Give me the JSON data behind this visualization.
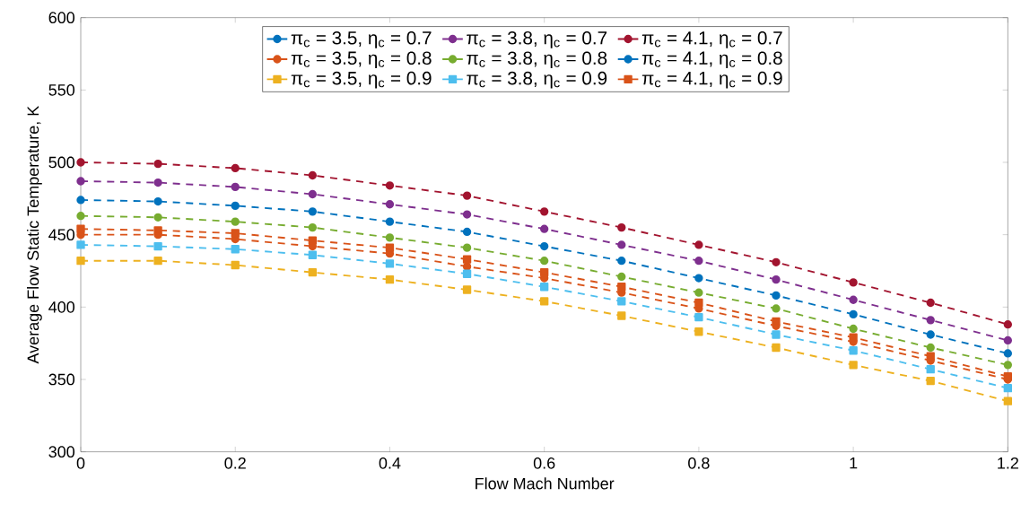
{
  "chart_data": {
    "type": "line",
    "xlabel": "Flow Mach Number",
    "ylabel": "Average Flow Static Temperature, K",
    "x": [
      0,
      0.1,
      0.2,
      0.3,
      0.4,
      0.5,
      0.6,
      0.7,
      0.8,
      0.9,
      1.0,
      1.1,
      1.2
    ],
    "xlim": [
      0,
      1.2
    ],
    "xticks": [
      0,
      0.2,
      0.4,
      0.6,
      0.8,
      1,
      1.2
    ],
    "ylim": [
      300,
      600
    ],
    "yticks": [
      300,
      350,
      400,
      450,
      500,
      550,
      600
    ],
    "grid": false,
    "legend": "top",
    "line_style": "dashed",
    "series": [
      {
        "name": "π$_{c}$ = 3.5, η$_{c}$ = 0.7",
        "color": "#0072bd",
        "marker": "circle",
        "values": [
          null,
          null,
          null,
          null,
          null,
          null,
          null,
          null,
          null,
          null,
          null,
          null,
          null
        ]
      },
      {
        "name": "π$_{c}$ = 3.8, η$_{c}$ = 0.7",
        "color": "#7e2f8e",
        "marker": "circle",
        "values": [
          487,
          486,
          483,
          478,
          471,
          464,
          454,
          443,
          432,
          419,
          405,
          391,
          377
        ]
      },
      {
        "name": "π$_{c}$ = 4.1, η$_{c}$ = 0.7",
        "color": "#a2142f",
        "marker": "circle",
        "values": [
          500,
          499,
          496,
          491,
          484,
          477,
          466,
          455,
          443,
          431,
          417,
          403,
          388
        ]
      },
      {
        "name": "π$_{c}$ = 3.5, η$_{c}$ = 0.8",
        "color": "#d95319",
        "marker": "circle",
        "values": [
          450,
          450,
          447,
          442,
          437,
          428,
          420,
          410,
          399,
          387,
          376,
          363,
          350
        ]
      },
      {
        "name": "π$_{c}$ = 3.8, η$_{c}$ = 0.8",
        "color": "#77ac30",
        "marker": "circle",
        "values": [
          463,
          462,
          459,
          455,
          448,
          441,
          432,
          421,
          410,
          399,
          385,
          372,
          360
        ]
      },
      {
        "name": "π$_{c}$ = 4.1, η$_{c}$ = 0.8",
        "color": "#0072bd",
        "marker": "circle",
        "values": [
          474,
          473,
          470,
          466,
          459,
          452,
          442,
          432,
          420,
          408,
          395,
          381,
          368
        ]
      },
      {
        "name": "π$_{c}$ = 3.5, η$_{c}$ = 0.9",
        "color": "#edb120",
        "marker": "square",
        "values": [
          432,
          432,
          429,
          424,
          419,
          412,
          404,
          394,
          383,
          372,
          360,
          349,
          335
        ]
      },
      {
        "name": "π$_{c}$ = 3.8, η$_{c}$ = 0.9",
        "color": "#4dbeee",
        "marker": "square",
        "values": [
          443,
          442,
          440,
          436,
          430,
          423,
          414,
          404,
          393,
          381,
          370,
          357,
          344
        ]
      },
      {
        "name": "π$_{c}$ = 4.1, η$_{c}$ = 0.9",
        "color": "#d95319",
        "marker": "square",
        "values": [
          454,
          453,
          451,
          446,
          441,
          433,
          424,
          414,
          403,
          390,
          379,
          366,
          352
        ]
      }
    ]
  }
}
